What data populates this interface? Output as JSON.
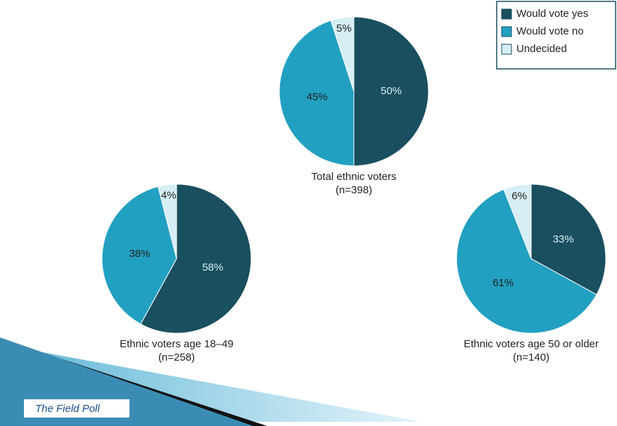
{
  "chart_data": [
    {
      "type": "pie",
      "title": "Total ethnic voters",
      "subtitle": "(n=398)",
      "values": [
        50,
        45,
        5
      ],
      "value_labels": [
        "50%",
        "45%",
        "5%"
      ]
    },
    {
      "type": "pie",
      "title": "Ethnic voters age 18–49",
      "subtitle": "(n=258)",
      "values": [
        58,
        38,
        4
      ],
      "value_labels": [
        "58%",
        "38%",
        "4%"
      ]
    },
    {
      "type": "pie",
      "title": "Ethnic voters age 50 or older",
      "subtitle": "(n=140)",
      "values": [
        33,
        61,
        6
      ],
      "value_labels": [
        "33%",
        "61%",
        "6%"
      ]
    }
  ],
  "legend": {
    "labels": [
      "Would vote yes",
      "Would vote no",
      "Undecided"
    ],
    "colors": [
      "#1a4f5f",
      "#22a0c1",
      "#d6eef6"
    ]
  },
  "footer": "The Field Poll"
}
